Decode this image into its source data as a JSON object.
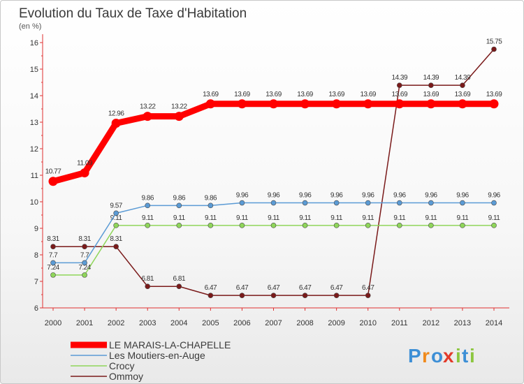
{
  "chart_data": {
    "type": "line",
    "title": "Evolution du Taux de Taxe d'Habitation",
    "subtitle": "(en %)",
    "x": [
      2000,
      2001,
      2002,
      2003,
      2004,
      2005,
      2006,
      2007,
      2008,
      2009,
      2010,
      2011,
      2012,
      2013,
      2014
    ],
    "ylim": [
      6,
      16
    ],
    "yticks": [
      6,
      7,
      8,
      9,
      10,
      11,
      12,
      13,
      14,
      15,
      16
    ],
    "grid": false,
    "legend_position": "bottom-left",
    "series": [
      {
        "name": "LE MARAIS-LA-CHAPELLE",
        "color": "#ff0000",
        "values": [
          10.77,
          11.09,
          12.96,
          13.22,
          13.22,
          13.69,
          13.69,
          13.69,
          13.69,
          13.69,
          13.69,
          13.69,
          13.69,
          13.69,
          13.69
        ],
        "labels": [
          "10.77",
          "11.09",
          "12.96",
          "13.22",
          "13.22",
          "13.69",
          "13.69",
          "13.69",
          "13.69",
          "13.69",
          "13.69",
          "13.69",
          "13.69",
          "13.69",
          "13.69"
        ]
      },
      {
        "name": "Les Moutiers-en-Auge",
        "color": "#5b9bd5",
        "values": [
          7.7,
          7.7,
          9.57,
          9.86,
          9.86,
          9.86,
          9.96,
          9.96,
          9.96,
          9.96,
          9.96,
          9.96,
          9.96,
          9.96,
          9.96
        ],
        "labels": [
          "7.7",
          "7.7",
          "9.57",
          "9.86",
          "9.86",
          "9.86",
          "9.96",
          "9.96",
          "9.96",
          "9.96",
          "9.96",
          "9.96",
          "9.96",
          "9.96",
          "9.96"
        ]
      },
      {
        "name": "Crocy",
        "color": "#8fd65a",
        "values": [
          7.24,
          7.24,
          9.11,
          9.11,
          9.11,
          9.11,
          9.11,
          9.11,
          9.11,
          9.11,
          9.11,
          9.11,
          9.11,
          9.11,
          9.11
        ],
        "labels": [
          "7.24",
          "7.24",
          "9.11",
          "9.11",
          "9.11",
          "9.11",
          "9.11",
          "9.11",
          "9.11",
          "9.11",
          "9.11",
          "9.11",
          "9.11",
          "9.11",
          "9.11"
        ]
      },
      {
        "name": "Ommoy",
        "color": "#7a1a1a",
        "values": [
          8.31,
          8.31,
          8.31,
          6.81,
          6.81,
          6.47,
          6.47,
          6.47,
          6.47,
          6.47,
          6.47,
          14.39,
          14.39,
          14.39,
          15.75
        ],
        "labels": [
          "8.31",
          "8.31",
          "8.31",
          "6.81",
          "6.81",
          "6.47",
          "6.47",
          "6.47",
          "6.47",
          "6.47",
          "6.47",
          "14.39",
          "14.39",
          "14.39",
          "15.75"
        ]
      }
    ]
  },
  "logo": {
    "letters": [
      "P",
      "r",
      "o",
      "x",
      "i",
      "t",
      "i"
    ],
    "colors": [
      "#3d8fd6",
      "#f08a1c",
      "#3d8fd6",
      "#e23a2a",
      "#8cc63f",
      "#3d8fd6",
      "#8cc63f"
    ]
  }
}
